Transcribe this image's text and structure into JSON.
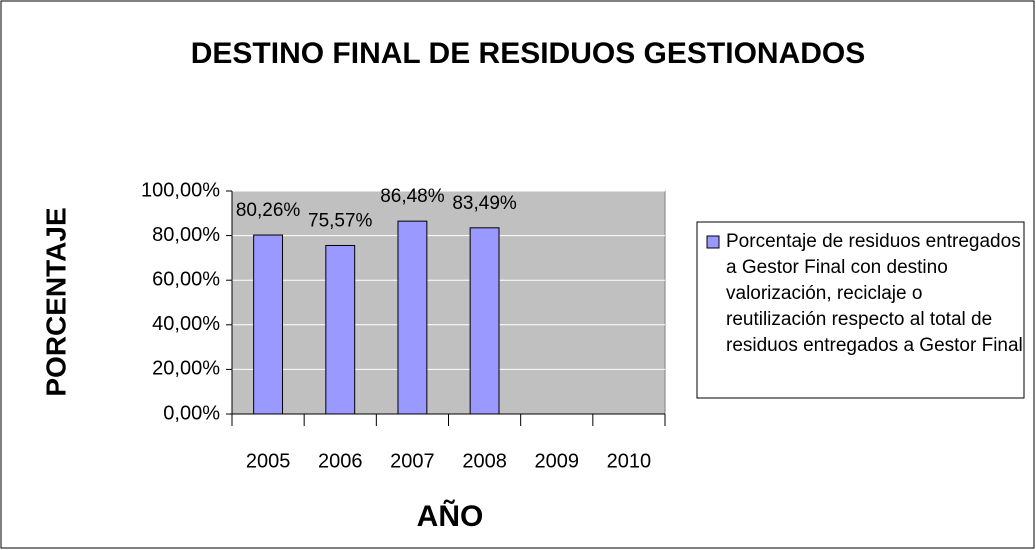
{
  "chart_data": {
    "type": "bar",
    "title": "DESTINO FINAL DE RESIDUOS GESTIONADOS",
    "y_label": "PORCENTAJE",
    "x_label": "AÑO",
    "categories": [
      "2005",
      "2006",
      "2007",
      "2008",
      "2009",
      "2010"
    ],
    "series": [
      {
        "name": "Porcentaje de residuos entregados a Gestor Final con destino valorización, reciclaje o reutilización respecto al total de residuos entregados a Gestor Final",
        "color": "#9999ff",
        "values": [
          80.26,
          75.57,
          86.48,
          83.49,
          null,
          null
        ],
        "value_labels": [
          "80,26%",
          "75,57%",
          "86,48%",
          "83,49%",
          null,
          null
        ]
      }
    ],
    "ylim": [
      0,
      100
    ],
    "yticks": [
      {
        "value": 0,
        "label": "0,00%"
      },
      {
        "value": 20,
        "label": "20,00%"
      },
      {
        "value": 40,
        "label": "40,00%"
      },
      {
        "value": 60,
        "label": "60,00%"
      },
      {
        "value": 80,
        "label": "80,00%"
      },
      {
        "value": 100,
        "label": "100,00%"
      }
    ],
    "grid": true,
    "plot_background": "#c0c0c0",
    "legend": "right"
  }
}
